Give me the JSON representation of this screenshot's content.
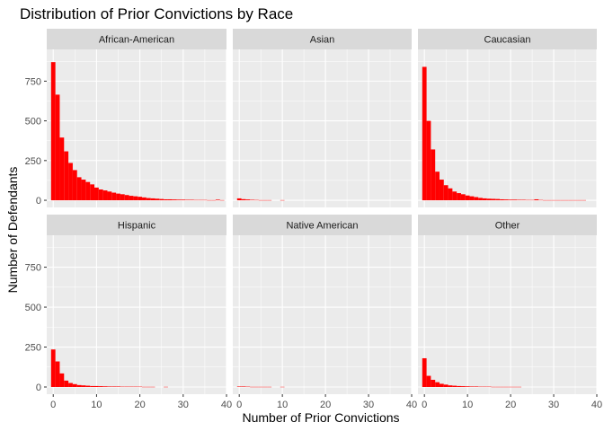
{
  "chart_data": {
    "type": "bar",
    "title": "Distribution of Prior Convictions by Race",
    "xlabel": "Number of Prior Convictions",
    "ylabel": "Number of Defendants",
    "xlim": [
      -1.5,
      40
    ],
    "ylim": [
      -45,
      950
    ],
    "x_ticks": [
      0,
      10,
      20,
      30,
      40
    ],
    "y_ticks": [
      0,
      250,
      500,
      750
    ],
    "bin_width": 1,
    "grid": true,
    "colors": {
      "bar": "#ff0000",
      "panel_bg": "#ebebeb",
      "strip_bg": "#d9d9d9",
      "grid_major": "#ffffff",
      "tick": "#333333"
    },
    "panels": [
      {
        "name": "African-American",
        "values": [
          870,
          665,
          395,
          308,
          235,
          190,
          145,
          130,
          115,
          100,
          80,
          68,
          62,
          55,
          48,
          42,
          38,
          33,
          28,
          25,
          22,
          18,
          14,
          12,
          10,
          8,
          6,
          6,
          5,
          4,
          4,
          3,
          3,
          2,
          2,
          2,
          1,
          1,
          4,
          1
        ]
      },
      {
        "name": "Asian",
        "values": [
          12,
          7,
          5,
          3,
          2,
          1,
          1,
          1,
          0,
          0,
          1,
          0,
          0,
          0,
          0,
          0,
          0,
          0,
          0,
          0,
          0,
          0,
          0,
          0,
          0,
          0,
          0,
          0,
          0,
          0,
          0,
          0,
          0,
          0,
          0,
          0,
          0,
          0,
          0,
          0
        ]
      },
      {
        "name": "Caucasian",
        "values": [
          840,
          500,
          320,
          180,
          130,
          95,
          75,
          55,
          45,
          38,
          30,
          25,
          20,
          15,
          12,
          10,
          9,
          8,
          6,
          5,
          4,
          4,
          3,
          3,
          2,
          2,
          6,
          2,
          1,
          1,
          1,
          1,
          1,
          1,
          1,
          1,
          1,
          1,
          0,
          0
        ]
      },
      {
        "name": "Hispanic",
        "values": [
          235,
          160,
          85,
          40,
          25,
          18,
          12,
          10,
          8,
          6,
          6,
          5,
          4,
          3,
          3,
          3,
          2,
          2,
          2,
          2,
          2,
          1,
          1,
          1,
          0,
          0,
          1,
          0,
          0,
          0,
          0,
          0,
          0,
          0,
          0,
          0,
          0,
          0,
          0,
          0
        ]
      },
      {
        "name": "Native American",
        "values": [
          3,
          3,
          2,
          1,
          1,
          1,
          1,
          1,
          0,
          0,
          1,
          0,
          0,
          0,
          0,
          0,
          0,
          0,
          0,
          0,
          0,
          0,
          0,
          0,
          0,
          0,
          0,
          0,
          0,
          0,
          0,
          0,
          0,
          0,
          0,
          0,
          0,
          0,
          0,
          0
        ]
      },
      {
        "name": "Other",
        "values": [
          180,
          70,
          45,
          30,
          20,
          15,
          10,
          8,
          6,
          5,
          4,
          3,
          3,
          2,
          2,
          2,
          1,
          1,
          1,
          1,
          1,
          1,
          1,
          0,
          0,
          0,
          0,
          0,
          0,
          0,
          0,
          0,
          0,
          0,
          0,
          0,
          0,
          0,
          0,
          0
        ]
      }
    ]
  }
}
